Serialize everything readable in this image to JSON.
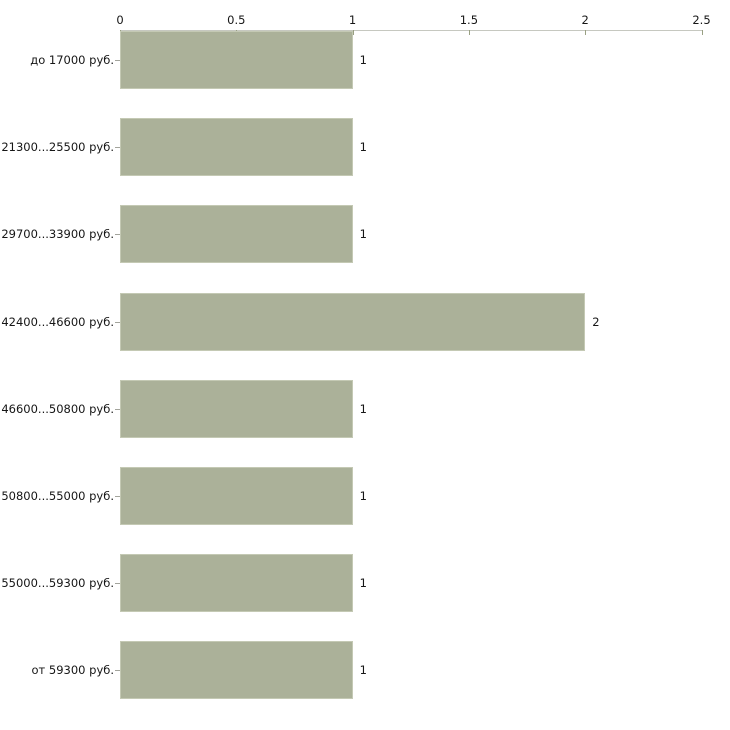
{
  "chart_data": {
    "type": "bar",
    "orientation": "horizontal",
    "title": "",
    "xlabel": "",
    "ylabel": "",
    "categories": [
      "до 17000 руб.",
      "21300...25500 руб.",
      "29700...33900 руб.",
      "42400...46600 руб.",
      "46600...50800 руб.",
      "50800...55000 руб.",
      "55000...59300 руб.",
      "от 59300 руб."
    ],
    "values": [
      1,
      1,
      1,
      2,
      1,
      1,
      1,
      1
    ],
    "value_labels": [
      "1",
      "1",
      "1",
      "2",
      "1",
      "1",
      "1",
      "1"
    ],
    "x_ticks": [
      0,
      0.5,
      1,
      1.5,
      2,
      2.5
    ],
    "x_tick_labels": [
      "0",
      "0.5",
      "1",
      "1.5",
      "2",
      "2.5"
    ],
    "xlim": [
      0,
      2.5
    ],
    "axis_position": "top",
    "grid": false,
    "legend": false,
    "colors": {
      "bar_fill": "#abb199",
      "bar_border": "#c4c9b4",
      "axis_line": "#c6c8c0",
      "x_tick": "#99a083",
      "category_tick": "#a3a49c",
      "text": "#161616",
      "background": "#ffffff"
    }
  }
}
